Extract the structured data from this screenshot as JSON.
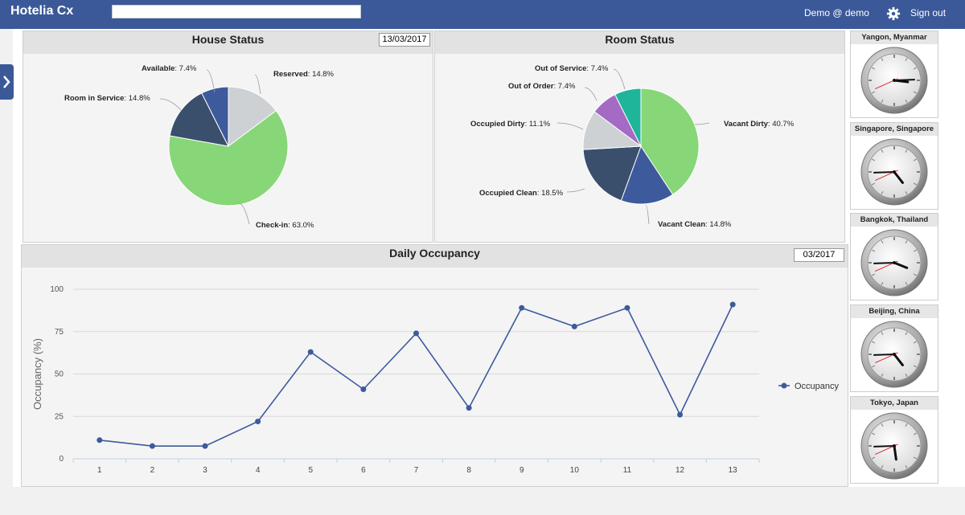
{
  "app": {
    "title": "Hotelia Cx",
    "user": "Demo @ demo",
    "signout": "Sign out"
  },
  "house_status": {
    "title": "House Status",
    "date": "13/03/2017",
    "slices": [
      {
        "label": "Reserved",
        "value": "14.8%",
        "color": "#cdd1d4"
      },
      {
        "label": "Check-in",
        "value": "63.0%",
        "color": "#87d677"
      },
      {
        "label": "Room in Service",
        "value": "14.8%",
        "color": "#3a4f6c"
      },
      {
        "label": "Available",
        "value": "7.4%",
        "color": "#3d5a9c"
      }
    ]
  },
  "room_status": {
    "title": "Room Status",
    "slices": [
      {
        "label": "Vacant Dirty",
        "value": "40.7%",
        "color": "#87d677"
      },
      {
        "label": "Vacant Clean",
        "value": "14.8%",
        "color": "#3d5a9c"
      },
      {
        "label": "Occupied Clean",
        "value": "18.5%",
        "color": "#3a4f6c"
      },
      {
        "label": "Occupied Dirty",
        "value": "11.1%",
        "color": "#cdd1d4"
      },
      {
        "label": "Out of Order",
        "value": "7.4%",
        "color": "#a56ac4"
      },
      {
        "label": "Out of Service",
        "value": "7.4%",
        "color": "#1fb59b"
      }
    ]
  },
  "occupancy": {
    "title": "Daily Occupancy",
    "date": "03/2017",
    "legend": "Occupancy"
  },
  "chart_data": [
    {
      "type": "pie",
      "title": "House Status",
      "categories": [
        "Reserved",
        "Check-in",
        "Room in Service",
        "Available"
      ],
      "values": [
        14.8,
        63.0,
        14.8,
        7.4
      ]
    },
    {
      "type": "pie",
      "title": "Room Status",
      "categories": [
        "Vacant Dirty",
        "Vacant Clean",
        "Occupied Clean",
        "Occupied Dirty",
        "Out of Order",
        "Out of Service"
      ],
      "values": [
        40.7,
        14.8,
        18.5,
        11.1,
        7.4,
        7.4
      ]
    },
    {
      "type": "line",
      "title": "Daily Occupancy",
      "xlabel": "",
      "ylabel": "Occupancy (%)",
      "x": [
        1,
        2,
        3,
        4,
        5,
        6,
        7,
        8,
        9,
        10,
        11,
        12,
        13
      ],
      "series": [
        {
          "name": "Occupancy",
          "color": "#3d5a9c",
          "values": [
            11,
            7.5,
            7.5,
            22,
            63,
            41,
            74,
            30,
            89,
            78,
            89,
            26,
            91
          ]
        }
      ],
      "ylim": [
        0,
        100
      ],
      "yticks": [
        0,
        25,
        50,
        75,
        100
      ],
      "legend": "right"
    }
  ],
  "clocks": [
    {
      "city": "Yangon, Myanmar",
      "h": 3,
      "m": 14,
      "s": 41
    },
    {
      "city": "Singapore, Singapore",
      "h": 4,
      "m": 44,
      "s": 41
    },
    {
      "city": "Bangkok, Thailand",
      "h": 3,
      "m": 44,
      "s": 41
    },
    {
      "city": "Beijing, China",
      "h": 4,
      "m": 44,
      "s": 41
    },
    {
      "city": "Tokyo, Japan",
      "h": 5,
      "m": 44,
      "s": 41
    }
  ]
}
